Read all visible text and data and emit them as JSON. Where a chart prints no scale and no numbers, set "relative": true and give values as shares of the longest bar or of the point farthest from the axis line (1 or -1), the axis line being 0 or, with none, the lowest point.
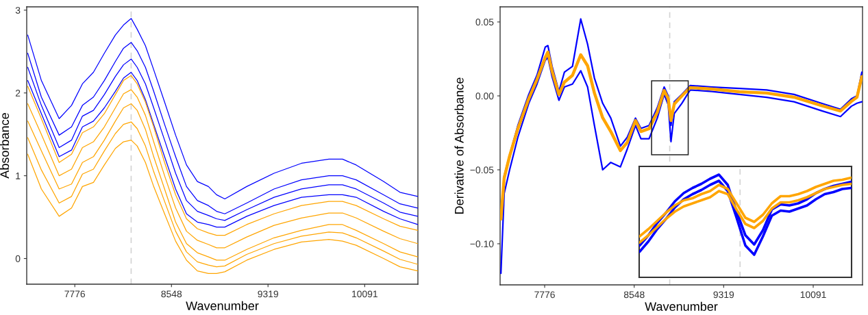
{
  "chart_data": [
    {
      "type": "line",
      "xlabel": "Wavenumber",
      "ylabel": "Absorbance",
      "x": [
        7400,
        7509,
        7651,
        7750,
        7837,
        7925,
        8012,
        8100,
        8165,
        8226,
        8274,
        8340,
        8406,
        8493,
        8581,
        8668,
        8755,
        8843,
        8908,
        8974,
        9149,
        9367,
        9586,
        9805,
        9914,
        10023,
        10242,
        10373,
        10515
      ],
      "xlim": [
        7392,
        10516
      ],
      "ylim": [
        -0.31,
        3.04
      ],
      "xticks": [
        7776,
        8548,
        9319,
        10091
      ],
      "yticks": [
        0,
        1,
        2,
        3
      ],
      "series": [
        {
          "color": "#0000ff",
          "values": [
            2.7,
            2.15,
            1.69,
            1.85,
            2.11,
            2.25,
            2.48,
            2.7,
            2.82,
            2.9,
            2.77,
            2.57,
            2.28,
            1.89,
            1.49,
            1.13,
            0.93,
            0.87,
            0.77,
            0.72,
            0.87,
            1.03,
            1.15,
            1.2,
            1.2,
            1.13,
            0.93,
            0.8,
            0.75
          ]
        },
        {
          "color": "#0000ff",
          "values": [
            2.48,
            1.95,
            1.49,
            1.59,
            1.85,
            1.95,
            2.15,
            2.38,
            2.54,
            2.61,
            2.51,
            2.31,
            2.02,
            1.62,
            1.23,
            0.87,
            0.7,
            0.64,
            0.57,
            0.54,
            0.67,
            0.84,
            0.95,
            1.0,
            1.0,
            0.95,
            0.77,
            0.66,
            0.61
          ]
        },
        {
          "color": "#0000ff",
          "values": [
            2.31,
            1.85,
            1.34,
            1.43,
            1.72,
            1.79,
            1.98,
            2.2,
            2.34,
            2.41,
            2.31,
            2.11,
            1.82,
            1.43,
            1.03,
            0.7,
            0.57,
            0.52,
            0.48,
            0.46,
            0.59,
            0.74,
            0.84,
            0.89,
            0.89,
            0.84,
            0.67,
            0.56,
            0.51
          ]
        },
        {
          "color": "#0000ff",
          "values": [
            2.15,
            1.75,
            1.23,
            1.31,
            1.59,
            1.66,
            1.82,
            2.02,
            2.18,
            2.25,
            2.15,
            1.92,
            1.62,
            1.23,
            0.84,
            0.54,
            0.44,
            0.41,
            0.38,
            0.38,
            0.51,
            0.64,
            0.74,
            0.77,
            0.77,
            0.74,
            0.57,
            0.48,
            0.41
          ]
        },
        {
          "color": "#ffa500",
          "values": [
            2.08,
            1.69,
            1.16,
            1.26,
            1.52,
            1.59,
            1.75,
            1.98,
            2.15,
            2.21,
            2.11,
            1.89,
            1.59,
            1.16,
            0.77,
            0.48,
            0.36,
            0.31,
            0.28,
            0.28,
            0.41,
            0.54,
            0.64,
            0.69,
            0.69,
            0.64,
            0.48,
            0.39,
            0.34
          ]
        },
        {
          "color": "#ffa500",
          "values": [
            1.87,
            1.5,
            1.0,
            1.08,
            1.34,
            1.41,
            1.59,
            1.82,
            1.99,
            2.04,
            1.95,
            1.73,
            1.41,
            1.0,
            0.61,
            0.33,
            0.22,
            0.17,
            0.13,
            0.13,
            0.26,
            0.4,
            0.49,
            0.55,
            0.55,
            0.49,
            0.33,
            0.24,
            0.18
          ]
        },
        {
          "color": "#ffa500",
          "values": [
            1.66,
            1.3,
            0.84,
            0.9,
            1.16,
            1.23,
            1.43,
            1.66,
            1.82,
            1.87,
            1.79,
            1.56,
            1.23,
            0.84,
            0.44,
            0.18,
            0.07,
            0.02,
            -0.02,
            -0.02,
            0.11,
            0.25,
            0.34,
            0.41,
            0.41,
            0.34,
            0.18,
            0.08,
            0.02
          ]
        },
        {
          "color": "#ffa500",
          "values": [
            1.46,
            1.07,
            0.67,
            0.75,
            1.02,
            1.08,
            1.3,
            1.51,
            1.62,
            1.65,
            1.57,
            1.36,
            1.05,
            0.69,
            0.33,
            0.08,
            -0.04,
            -0.08,
            -0.1,
            -0.09,
            0.05,
            0.18,
            0.27,
            0.32,
            0.31,
            0.25,
            0.09,
            -0.01,
            -0.07
          ]
        },
        {
          "color": "#ffa500",
          "values": [
            1.26,
            0.84,
            0.51,
            0.61,
            0.87,
            0.92,
            1.13,
            1.33,
            1.41,
            1.43,
            1.36,
            1.16,
            0.87,
            0.54,
            0.21,
            -0.02,
            -0.15,
            -0.18,
            -0.18,
            -0.16,
            -0.02,
            0.11,
            0.2,
            0.23,
            0.21,
            0.16,
            0.0,
            -0.1,
            -0.15
          ]
        }
      ],
      "ref_lines": [
        {
          "axis": "x",
          "value": 8226,
          "color": "#d3d3d3",
          "line_style": "dashed"
        }
      ]
    },
    {
      "type": "line",
      "xlabel": "Wavenumber",
      "ylabel": "Derivative of Absorbance",
      "x": [
        7399,
        7427,
        7474,
        7545,
        7639,
        7710,
        7781,
        7804,
        7840,
        7899,
        7946,
        8016,
        8087,
        8146,
        8205,
        8276,
        8346,
        8429,
        8488,
        8559,
        8606,
        8676,
        8747,
        8806,
        8841,
        8865,
        8893,
        8959,
        9030,
        9218,
        9454,
        9690,
        9926,
        10161,
        10326,
        10420,
        10468,
        10510
      ],
      "xlim": [
        7392,
        10516
      ],
      "ylim": [
        -0.1278,
        0.0602
      ],
      "xticks": [
        7776,
        8548,
        9319,
        10091
      ],
      "yticks": [
        {
          "value": -0.1,
          "label": "−0.10"
        },
        {
          "value": -0.05,
          "label": "−0.05"
        },
        {
          "value": 0.0,
          "label": "0.00"
        },
        {
          "value": 0.05,
          "label": "0.05"
        }
      ],
      "series": [
        {
          "color": "#0000ff",
          "values": [
            -0.08,
            -0.054,
            -0.04,
            -0.02,
            0.001,
            0.014,
            0.033,
            0.034,
            0.02,
            0.003,
            0.016,
            0.02,
            0.052,
            0.035,
            0.012,
            -0.005,
            -0.015,
            -0.034,
            -0.028,
            -0.015,
            -0.022,
            -0.02,
            -0.008,
            0.006,
            0.0,
            -0.02,
            -0.004,
            0.001,
            0.007,
            0.006,
            0.005,
            0.004,
            0.001,
            -0.005,
            -0.009,
            -0.002,
            0.0,
            0.016
          ]
        },
        {
          "color": "#0000ff",
          "values": [
            -0.12,
            -0.066,
            -0.05,
            -0.028,
            -0.005,
            0.008,
            0.024,
            0.026,
            0.013,
            -0.003,
            0.006,
            0.008,
            0.017,
            0.006,
            -0.02,
            -0.05,
            -0.045,
            -0.048,
            -0.036,
            -0.02,
            -0.029,
            -0.029,
            -0.015,
            0.001,
            -0.006,
            -0.031,
            -0.012,
            -0.005,
            0.004,
            0.003,
            0.001,
            -0.001,
            -0.004,
            -0.01,
            -0.014,
            -0.007,
            -0.005,
            -0.004
          ]
        },
        {
          "color": "#ffa500",
          "values": [
            -0.0833,
            -0.0556,
            -0.0407,
            -0.0222,
            -0.0019,
            0.0111,
            0.0259,
            0.0296,
            0.0167,
            0.0009,
            0.0093,
            0.0139,
            0.0278,
            0.0204,
            0.0019,
            -0.0148,
            -0.0241,
            -0.037,
            -0.0315,
            -0.0167,
            -0.0241,
            -0.0222,
            -0.0111,
            0.0037,
            -0.0019,
            -0.0167,
            -0.0056,
            0.0,
            0.0056,
            0.0046,
            0.0028,
            0.0019,
            -0.0009,
            -0.0065,
            -0.0102,
            -0.0037,
            -0.0009,
            0.013
          ]
        }
      ],
      "ref_lines": [
        {
          "axis": "x",
          "value": 8854,
          "color": "#d3d3d3",
          "line_style": "dashed"
        }
      ]
    },
    {
      "type": "line",
      "relative": true,
      "tick_labels": false,
      "categories": [
        null,
        null,
        null,
        null,
        null,
        null,
        null,
        null,
        null,
        null,
        null,
        null,
        null,
        null,
        null,
        null,
        null,
        null,
        null,
        null,
        null,
        null,
        null,
        null,
        null
      ],
      "series": [
        {
          "color": "#0000ff",
          "values": [
            0.31,
            0.41,
            0.53,
            0.63,
            0.74,
            0.82,
            0.87,
            0.91,
            0.96,
            1.0,
            0.9,
            0.64,
            0.41,
            0.32,
            0.46,
            0.66,
            0.71,
            0.7,
            0.72,
            0.76,
            0.82,
            0.86,
            0.89,
            0.91,
            0.93
          ]
        },
        {
          "color": "#0000ff",
          "values": [
            0.25,
            0.35,
            0.47,
            0.57,
            0.68,
            0.76,
            0.81,
            0.85,
            0.9,
            0.94,
            0.84,
            0.58,
            0.31,
            0.22,
            0.4,
            0.6,
            0.65,
            0.64,
            0.67,
            0.7,
            0.76,
            0.81,
            0.83,
            0.86,
            0.87
          ]
        },
        {
          "color": "#ffa500",
          "values": [
            0.4,
            0.47,
            0.55,
            0.63,
            0.7,
            0.75,
            0.77,
            0.81,
            0.84,
            0.9,
            0.86,
            0.72,
            0.58,
            0.54,
            0.61,
            0.72,
            0.79,
            0.79,
            0.81,
            0.84,
            0.88,
            0.91,
            0.94,
            0.95,
            0.97
          ]
        },
        {
          "color": "#ffa500",
          "values": [
            0.34,
            0.41,
            0.49,
            0.57,
            0.64,
            0.69,
            0.72,
            0.75,
            0.78,
            0.84,
            0.81,
            0.66,
            0.52,
            0.48,
            0.55,
            0.67,
            0.73,
            0.73,
            0.75,
            0.78,
            0.82,
            0.86,
            0.88,
            0.9,
            0.91
          ]
        }
      ]
    }
  ]
}
